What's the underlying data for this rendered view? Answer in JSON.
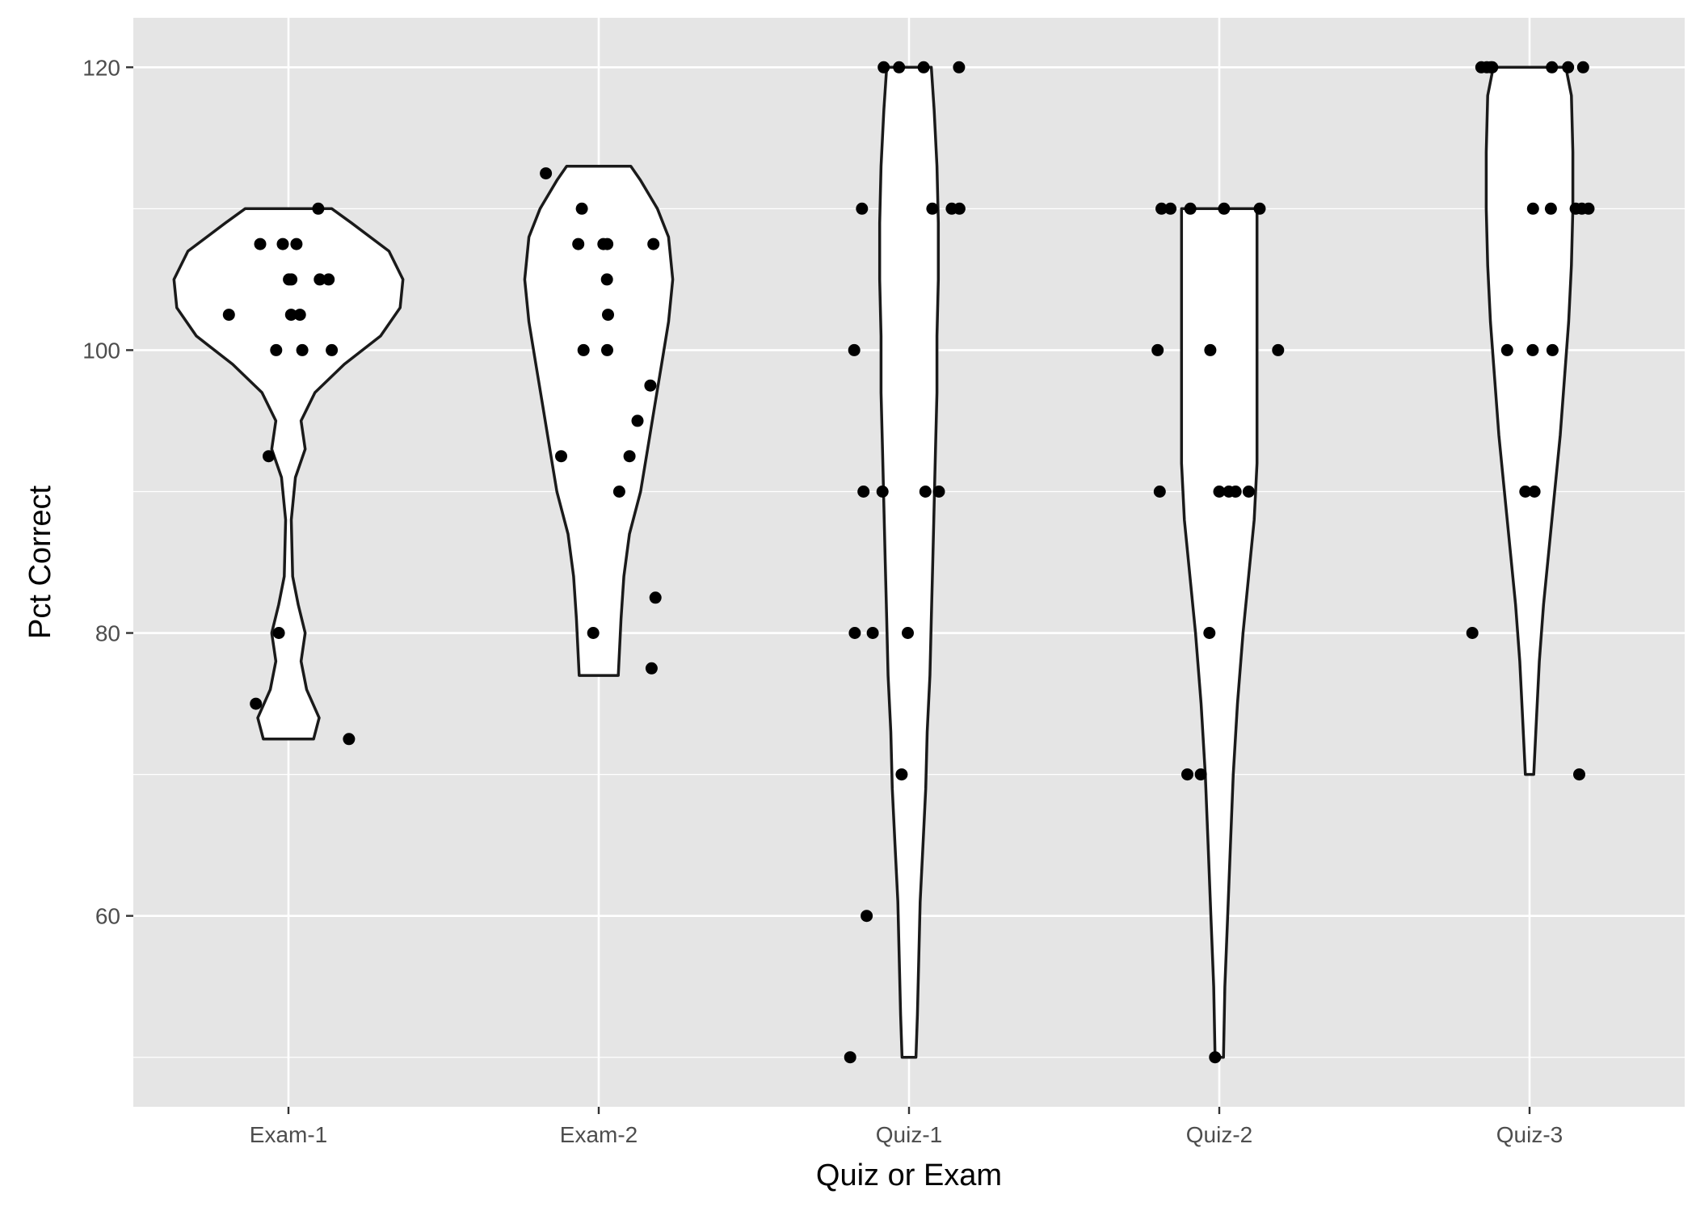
{
  "chart_data": {
    "type": "violin",
    "xlabel": "Quiz or Exam",
    "ylabel": "Pct Correct",
    "categories": [
      "Exam-1",
      "Exam-2",
      "Quiz-1",
      "Quiz-2",
      "Quiz-3"
    ],
    "y_ticks": [
      60,
      80,
      100,
      120
    ],
    "ylim": [
      46.5,
      123.5
    ],
    "grid": true,
    "background": "#e5e5e5",
    "point_color": "#000000",
    "violin_fill": "#ffffff",
    "groups": [
      {
        "name": "Exam-1",
        "values": [
          110,
          107.5,
          107.5,
          107.5,
          105,
          105,
          105,
          105,
          102.5,
          102.5,
          102.5,
          100,
          100,
          100,
          92.5,
          80,
          75,
          72.5
        ],
        "density": [
          [
            72.5,
            0.18
          ],
          [
            74,
            0.22
          ],
          [
            76,
            0.13
          ],
          [
            78,
            0.09
          ],
          [
            80,
            0.12
          ],
          [
            82,
            0.07
          ],
          [
            84,
            0.03
          ],
          [
            88,
            0.02
          ],
          [
            91,
            0.05
          ],
          [
            93,
            0.12
          ],
          [
            95,
            0.09
          ],
          [
            97,
            0.19
          ],
          [
            99,
            0.4
          ],
          [
            101,
            0.66
          ],
          [
            103,
            0.8
          ],
          [
            105,
            0.82
          ],
          [
            107,
            0.72
          ],
          [
            109,
            0.45
          ],
          [
            110,
            0.31
          ]
        ]
      },
      {
        "name": "Exam-2",
        "values": [
          112.5,
          110,
          107.5,
          107.5,
          107.5,
          107.5,
          105,
          102.5,
          100,
          100,
          97.5,
          95,
          92.5,
          92.5,
          90,
          82.5,
          80,
          77.5
        ],
        "density": [
          [
            77,
            0.14
          ],
          [
            79,
            0.15
          ],
          [
            81,
            0.16
          ],
          [
            84,
            0.18
          ],
          [
            87,
            0.22
          ],
          [
            90,
            0.3
          ],
          [
            93,
            0.35
          ],
          [
            96,
            0.4
          ],
          [
            99,
            0.45
          ],
          [
            102,
            0.5
          ],
          [
            105,
            0.53
          ],
          [
            108,
            0.5
          ],
          [
            110,
            0.42
          ],
          [
            112,
            0.3
          ],
          [
            113,
            0.23
          ]
        ]
      },
      {
        "name": "Quiz-1",
        "values": [
          120,
          120,
          120,
          120,
          110,
          110,
          110,
          110,
          100,
          90,
          90,
          90,
          90,
          80,
          80,
          80,
          70,
          60,
          50
        ],
        "density": [
          [
            50,
            0.05
          ],
          [
            53,
            0.06
          ],
          [
            57,
            0.07
          ],
          [
            61,
            0.08
          ],
          [
            65,
            0.1
          ],
          [
            69,
            0.12
          ],
          [
            73,
            0.13
          ],
          [
            77,
            0.15
          ],
          [
            81,
            0.16
          ],
          [
            85,
            0.17
          ],
          [
            89,
            0.18
          ],
          [
            93,
            0.19
          ],
          [
            97,
            0.2
          ],
          [
            101,
            0.2
          ],
          [
            105,
            0.21
          ],
          [
            109,
            0.21
          ],
          [
            113,
            0.2
          ],
          [
            117,
            0.18
          ],
          [
            120,
            0.16
          ]
        ]
      },
      {
        "name": "Quiz-2",
        "values": [
          110,
          110,
          110,
          110,
          110,
          100,
          100,
          100,
          90,
          90,
          90,
          90,
          90,
          80,
          70,
          70,
          50
        ],
        "density": [
          [
            50,
            0.03
          ],
          [
            55,
            0.04
          ],
          [
            60,
            0.06
          ],
          [
            65,
            0.08
          ],
          [
            70,
            0.1
          ],
          [
            75,
            0.13
          ],
          [
            80,
            0.17
          ],
          [
            84,
            0.21
          ],
          [
            88,
            0.25
          ],
          [
            92,
            0.27
          ],
          [
            96,
            0.27
          ],
          [
            100,
            0.27
          ],
          [
            104,
            0.27
          ],
          [
            108,
            0.27
          ],
          [
            110,
            0.27
          ]
        ]
      },
      {
        "name": "Quiz-3",
        "values": [
          120,
          120,
          120,
          120,
          120,
          120,
          120,
          110,
          110,
          110,
          110,
          110,
          100,
          100,
          100,
          90,
          90,
          80,
          70
        ],
        "density": [
          [
            70,
            0.03
          ],
          [
            74,
            0.05
          ],
          [
            78,
            0.07
          ],
          [
            82,
            0.1
          ],
          [
            86,
            0.14
          ],
          [
            90,
            0.18
          ],
          [
            94,
            0.22
          ],
          [
            98,
            0.25
          ],
          [
            102,
            0.28
          ],
          [
            106,
            0.3
          ],
          [
            110,
            0.31
          ],
          [
            114,
            0.31
          ],
          [
            118,
            0.3
          ],
          [
            120,
            0.26
          ]
        ]
      }
    ]
  }
}
